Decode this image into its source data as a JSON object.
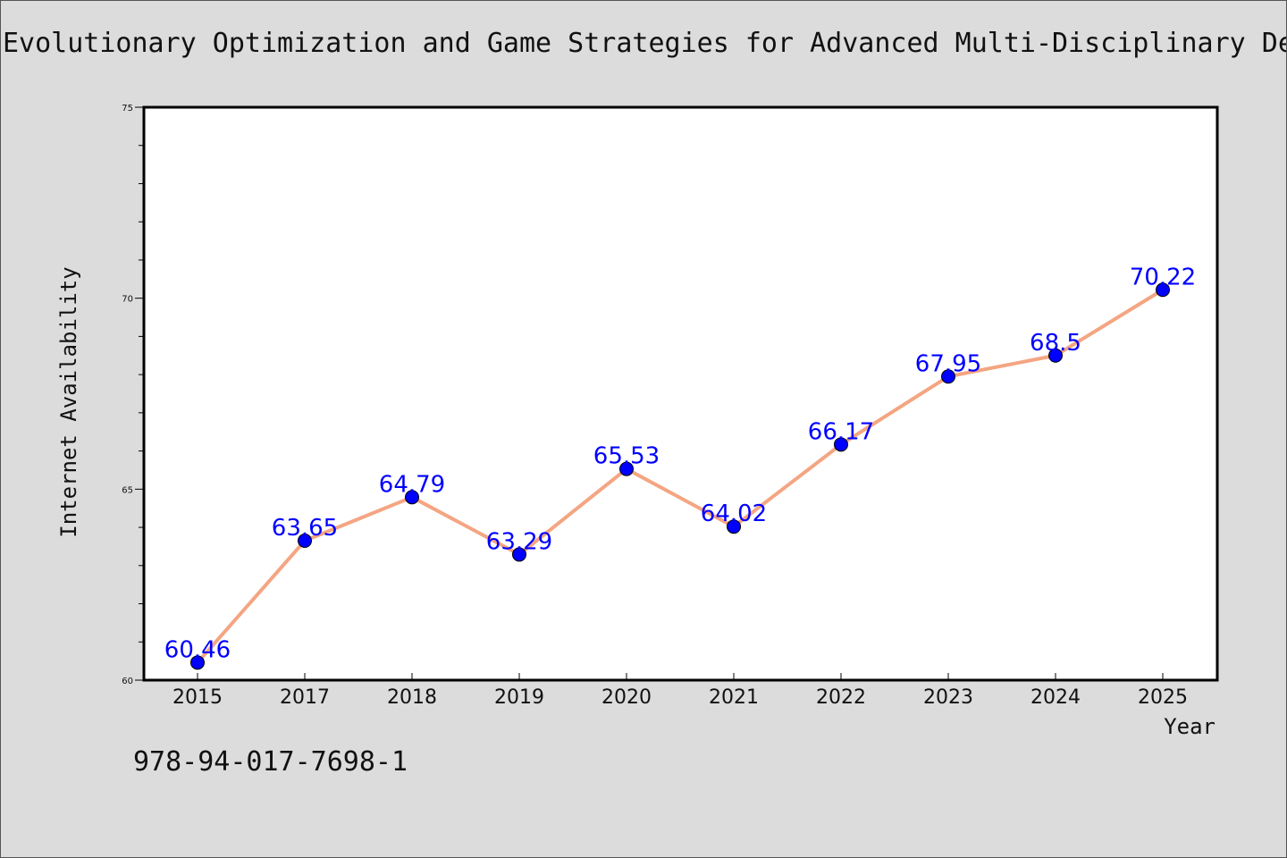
{
  "title": "Evolutionary Optimization and Game Strategies for Advanced Multi-Disciplinary De",
  "footer_text": "978-94-017-7698-1",
  "chart_data": {
    "type": "line",
    "title": "Evolutionary Optimization and Game Strategies for Advanced Multi-Disciplinary De",
    "xlabel": "Year",
    "ylabel": "Internet Availability",
    "categories": [
      "2015",
      "2017",
      "2018",
      "2019",
      "2020",
      "2021",
      "2022",
      "2023",
      "2024",
      "2025"
    ],
    "series": [
      {
        "values": [
          60.46,
          63.65,
          64.79,
          63.29,
          65.53,
          64.02,
          66.17,
          67.95,
          68.5,
          70.22
        ],
        "data_labels": [
          "60.46",
          "63.65",
          "64.79",
          "63.29",
          "65.53",
          "64.02",
          "66.17",
          "67.95",
          "68.5",
          "70.22"
        ]
      }
    ],
    "ylim": [
      60,
      75
    ],
    "yticks": [
      "60",
      "65",
      "70",
      "75"
    ],
    "grid": false,
    "colors": {
      "line": "#f4a582",
      "marker": "#0000ff",
      "label": "#0000ff",
      "axes": "#000000"
    }
  }
}
